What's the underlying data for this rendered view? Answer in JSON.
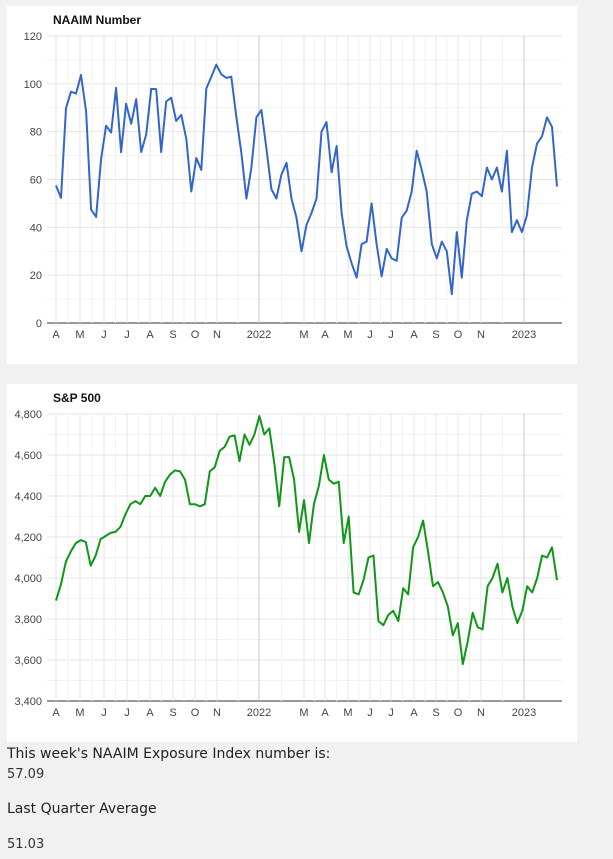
{
  "colors": {
    "naaim_line": "#3366cc",
    "sp500_line": "#109618",
    "grid": "#e4e4e4",
    "axis": "#333333"
  },
  "chart_data": [
    {
      "type": "line",
      "title": "NAAIM Number",
      "xlabel": "",
      "ylabel": "",
      "ylim": [
        0,
        120
      ],
      "yticks": [
        0,
        20,
        40,
        60,
        80,
        100,
        120
      ],
      "ytick_labels": [
        "0",
        "20",
        "40",
        "60",
        "80",
        "100",
        "120"
      ],
      "xticks": [
        "A",
        "M",
        "J",
        "J",
        "A",
        "S",
        "O",
        "N",
        "2022",
        "M",
        "A",
        "M",
        "J",
        "J",
        "A",
        "S",
        "O",
        "N",
        "2023"
      ],
      "grid": true,
      "series": [
        {
          "name": "",
          "values": [
            57.5,
            52.3,
            89.9,
            96.7,
            95.9,
            103.7,
            88.5,
            47.4,
            44.3,
            68.6,
            82.5,
            79.6,
            98.3,
            71.4,
            91.7,
            83.3,
            93.6,
            71.5,
            78.8,
            97.9,
            97.8,
            71.5,
            92.6,
            94.2,
            84.5,
            87.0,
            77.0,
            55.0,
            69.0,
            64.0,
            98.0,
            103.0,
            108.0,
            104.0,
            102.5,
            103.0,
            86.0,
            71.0,
            52.0,
            65.0,
            86.0,
            89.0,
            73.0,
            56.0,
            52.0,
            62.0,
            67.0,
            52.0,
            44.0,
            30.0,
            41.0,
            46.0,
            52.0,
            80.0,
            84.0,
            63.0,
            74.0,
            46.0,
            32.0,
            25.0,
            19.0,
            33.0,
            34.0,
            50.0,
            33.0,
            19.5,
            31.0,
            27.0,
            26.0,
            44.0,
            47.0,
            55.0,
            72.0,
            64.0,
            55.0,
            33.0,
            27.0,
            34.0,
            30.0,
            12.0,
            38.0,
            19.0,
            43.0,
            54.0,
            55.0,
            53.0,
            65.0,
            60.0,
            65.0,
            55.0,
            72.0,
            38.0,
            43.0,
            38.0,
            45.0,
            65.0,
            75.0,
            78.0,
            86.0,
            82.0,
            57.09
          ]
        }
      ]
    },
    {
      "type": "line",
      "title": "S&P 500",
      "xlabel": "",
      "ylabel": "",
      "ylim": [
        3400,
        4800
      ],
      "yticks": [
        3400,
        3600,
        3800,
        4000,
        4200,
        4400,
        4600,
        4800
      ],
      "ytick_labels": [
        "3,400",
        "3,600",
        "3,800",
        "4,000",
        "4,200",
        "4,400",
        "4,600",
        "4,800"
      ],
      "xticks": [
        "A",
        "M",
        "J",
        "J",
        "A",
        "S",
        "O",
        "N",
        "2022",
        "M",
        "A",
        "M",
        "J",
        "J",
        "A",
        "S",
        "O",
        "N",
        "2023"
      ],
      "grid": true,
      "series": [
        {
          "name": "",
          "values": [
            3890,
            3970,
            4080,
            4130,
            4170,
            4185,
            4175,
            4060,
            4110,
            4190,
            4205,
            4220,
            4225,
            4250,
            4310,
            4360,
            4375,
            4360,
            4400,
            4400,
            4440,
            4400,
            4470,
            4505,
            4525,
            4520,
            4480,
            4360,
            4360,
            4350,
            4360,
            4520,
            4540,
            4620,
            4640,
            4690,
            4695,
            4570,
            4700,
            4650,
            4700,
            4790,
            4700,
            4730,
            4560,
            4350,
            4590,
            4590,
            4480,
            4225,
            4380,
            4170,
            4360,
            4450,
            4600,
            4480,
            4460,
            4470,
            4170,
            4300,
            3930,
            3920,
            3990,
            4100,
            4110,
            3790,
            3770,
            3820,
            3840,
            3790,
            3950,
            3920,
            4150,
            4200,
            4280,
            4130,
            3960,
            3980,
            3930,
            3860,
            3720,
            3780,
            3580,
            3690,
            3830,
            3760,
            3750,
            3960,
            4000,
            4070,
            3930,
            4000,
            3860,
            3780,
            3840,
            3960,
            3930,
            4000,
            4110,
            4100,
            4150,
            3990
          ]
        }
      ]
    }
  ],
  "info": {
    "week_label": "This week's NAAIM Exposure Index number is:",
    "week_value": "57.09",
    "quarter_label": "Last Quarter Average",
    "quarter_value": "51.03"
  }
}
